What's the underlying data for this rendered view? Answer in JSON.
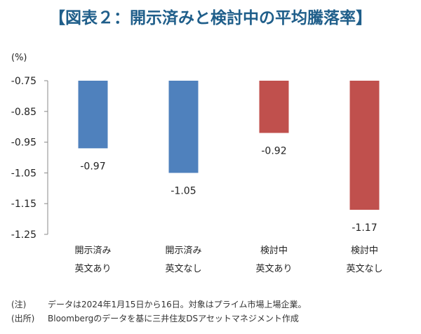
{
  "title": "【図表２：開示済みと検討中の平均騰落率】",
  "chart_data": {
    "type": "bar",
    "unit_label": "(%)",
    "ylim": [
      -1.25,
      -0.75
    ],
    "yticks": [
      -0.75,
      -0.85,
      -0.95,
      -1.05,
      -1.15,
      -1.25
    ],
    "ytick_labels": [
      "-0.75",
      "-0.85",
      "-0.95",
      "-1.05",
      "-1.15",
      "-1.25"
    ],
    "grid": false,
    "legend": "none",
    "categories": [
      {
        "line1": "開示済み",
        "line2": "英文あり"
      },
      {
        "line1": "開示済み",
        "line2": "英文なし"
      },
      {
        "line1": "検討中",
        "line2": "英文あり"
      },
      {
        "line1": "検討中",
        "line2": "英文なし"
      }
    ],
    "values": [
      -0.97,
      -1.05,
      -0.92,
      -1.17
    ],
    "value_labels": [
      "-0.97",
      "-1.05",
      "-0.92",
      "-1.17"
    ],
    "colors": [
      "#4f81bd",
      "#4f81bd",
      "#c0504d",
      "#c0504d"
    ]
  },
  "notes": [
    {
      "label": "(注)",
      "text": "データは2024年1月15日から16日。対象はプライム市場上場企業。"
    },
    {
      "label": "(出所)",
      "text": "Bloombergのデータを基に三井住友DSアセットマネジメント作成"
    }
  ]
}
